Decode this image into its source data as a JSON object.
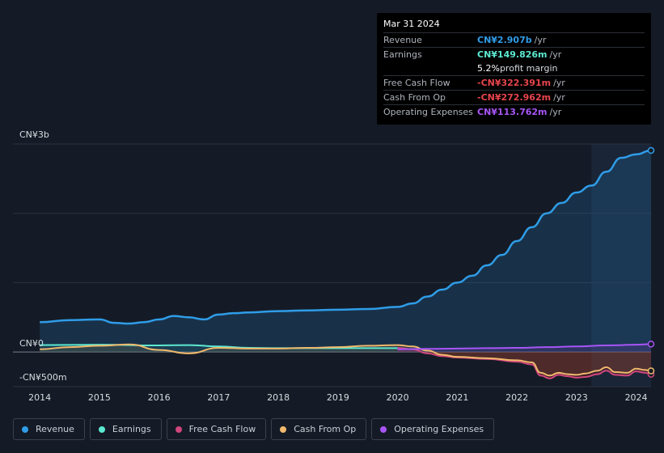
{
  "tooltip": {
    "date": "Mar 31 2024",
    "rows": [
      {
        "label": "Revenue",
        "value": "CN¥2.907b",
        "unit": "/yr",
        "color": "#2f9de8"
      },
      {
        "label": "Earnings",
        "value": "CN¥149.826m",
        "unit": "/yr",
        "color": "#5de8d1"
      },
      {
        "label": "",
        "value": "5.2%",
        "unit": "profit margin",
        "color": "#ffffff"
      },
      {
        "label": "Free Cash Flow",
        "value": "-CN¥322.391m",
        "unit": "/yr",
        "color": "#e8454c"
      },
      {
        "label": "Cash From Op",
        "value": "-CN¥272.962m",
        "unit": "/yr",
        "color": "#e8454c"
      },
      {
        "label": "Operating Expenses",
        "value": "CN¥113.762m",
        "unit": "/yr",
        "color": "#a855f7"
      }
    ]
  },
  "chart_data": {
    "type": "line",
    "ylabel_top": "CN¥3b",
    "ylabel_zero": "CN¥0",
    "ylabel_bottom": "-CN¥500m",
    "ylim": [
      -500,
      3000
    ],
    "xlim": [
      2013.55,
      2024.25
    ],
    "x_ticks": [
      "2014",
      "2015",
      "2016",
      "2017",
      "2018",
      "2019",
      "2020",
      "2021",
      "2022",
      "2023",
      "2024"
    ],
    "series": [
      {
        "name": "Revenue",
        "color": "#2f9de8",
        "x": [
          2014.0,
          2014.5,
          2015.0,
          2015.25,
          2015.5,
          2015.75,
          2016.0,
          2016.25,
          2016.5,
          2016.75,
          2017.0,
          2017.25,
          2017.5,
          2018.0,
          2018.5,
          2019.0,
          2019.5,
          2020.0,
          2020.25,
          2020.5,
          2020.75,
          2021.0,
          2021.25,
          2021.5,
          2021.75,
          2022.0,
          2022.25,
          2022.5,
          2022.75,
          2023.0,
          2023.25,
          2023.5,
          2023.75,
          2024.0,
          2024.25
        ],
        "values": [
          430,
          460,
          470,
          420,
          410,
          430,
          470,
          520,
          500,
          470,
          540,
          560,
          570,
          590,
          600,
          610,
          620,
          650,
          700,
          800,
          900,
          1000,
          1100,
          1250,
          1400,
          1600,
          1800,
          2000,
          2150,
          2300,
          2400,
          2600,
          2800,
          2850,
          2907
        ]
      },
      {
        "name": "Earnings",
        "color": "#5de8d1",
        "x": [
          2014.0,
          2015.0,
          2016.0,
          2016.5,
          2017.0,
          2017.5,
          2018.0,
          2019.0,
          2020.0
        ],
        "values": [
          100,
          105,
          95,
          100,
          80,
          60,
          55,
          55,
          55
        ]
      },
      {
        "name": "Free Cash Flow",
        "color": "#d0467d",
        "x": [
          2020.0,
          2020.25,
          2020.5,
          2020.75,
          2021.0,
          2021.5,
          2022.0,
          2022.25,
          2022.4,
          2022.55,
          2022.7,
          2022.85,
          2023.0,
          2023.15,
          2023.35,
          2023.5,
          2023.65,
          2023.85,
          2024.0,
          2024.15,
          2024.25
        ],
        "values": [
          60,
          40,
          -20,
          -60,
          -80,
          -100,
          -140,
          -180,
          -340,
          -380,
          -330,
          -350,
          -370,
          -360,
          -320,
          -270,
          -330,
          -340,
          -280,
          -300,
          -322
        ]
      },
      {
        "name": "Cash From Op",
        "color": "#f0b96d",
        "x": [
          2014.0,
          2014.5,
          2015.0,
          2015.5,
          2016.0,
          2016.5,
          2017.0,
          2017.5,
          2018.0,
          2018.5,
          2019.0,
          2019.5,
          2020.0,
          2020.25,
          2020.5,
          2020.75,
          2021.0,
          2021.5,
          2022.0,
          2022.25,
          2022.4,
          2022.55,
          2022.7,
          2022.85,
          2023.0,
          2023.15,
          2023.35,
          2023.5,
          2023.65,
          2023.85,
          2024.0,
          2024.15,
          2024.25
        ],
        "values": [
          40,
          70,
          90,
          110,
          30,
          -20,
          60,
          50,
          50,
          60,
          70,
          90,
          100,
          80,
          20,
          -40,
          -70,
          -90,
          -120,
          -150,
          -300,
          -340,
          -300,
          -320,
          -330,
          -310,
          -270,
          -220,
          -290,
          -300,
          -240,
          -260,
          -273
        ]
      },
      {
        "name": "Operating Expenses",
        "color": "#a855f7",
        "x": [
          2020.0,
          2020.5,
          2021.0,
          2021.5,
          2022.0,
          2022.5,
          2023.0,
          2023.5,
          2024.0,
          2024.25
        ],
        "values": [
          40,
          45,
          50,
          55,
          60,
          70,
          80,
          95,
          105,
          114
        ]
      }
    ]
  },
  "legend": [
    {
      "label": "Revenue",
      "color": "#2f9de8"
    },
    {
      "label": "Earnings",
      "color": "#5de8d1"
    },
    {
      "label": "Free Cash Flow",
      "color": "#d0467d"
    },
    {
      "label": "Cash From Op",
      "color": "#f0b96d"
    },
    {
      "label": "Operating Expenses",
      "color": "#a855f7"
    }
  ]
}
